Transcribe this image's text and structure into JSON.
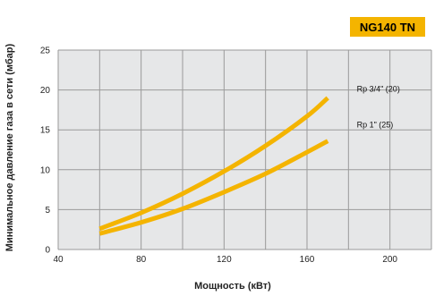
{
  "badge": "NG140 TN",
  "chart_data": {
    "type": "line",
    "xlabel": "Мощность (кВт)",
    "ylabel": "Минимальное давление газа в сети (мбар)",
    "xlim": [
      40,
      220
    ],
    "ylim": [
      0,
      25
    ],
    "xticks": [
      40,
      80,
      120,
      160,
      200
    ],
    "yticks": [
      0,
      5,
      10,
      15,
      20,
      25
    ],
    "x_minor_step": 20,
    "grid": true,
    "line_color": "#f4b400",
    "series": [
      {
        "name": "Rp 3/4\" (20)",
        "x": [
          60,
          80,
          100,
          120,
          140,
          160,
          170
        ],
        "y": [
          2.6,
          4.6,
          7.0,
          9.8,
          13.0,
          16.7,
          19.0
        ]
      },
      {
        "name": "Rp 1\" (25)",
        "x": [
          60,
          80,
          100,
          120,
          140,
          160,
          170
        ],
        "y": [
          2.0,
          3.4,
          5.1,
          7.2,
          9.5,
          12.2,
          13.6
        ]
      }
    ]
  }
}
